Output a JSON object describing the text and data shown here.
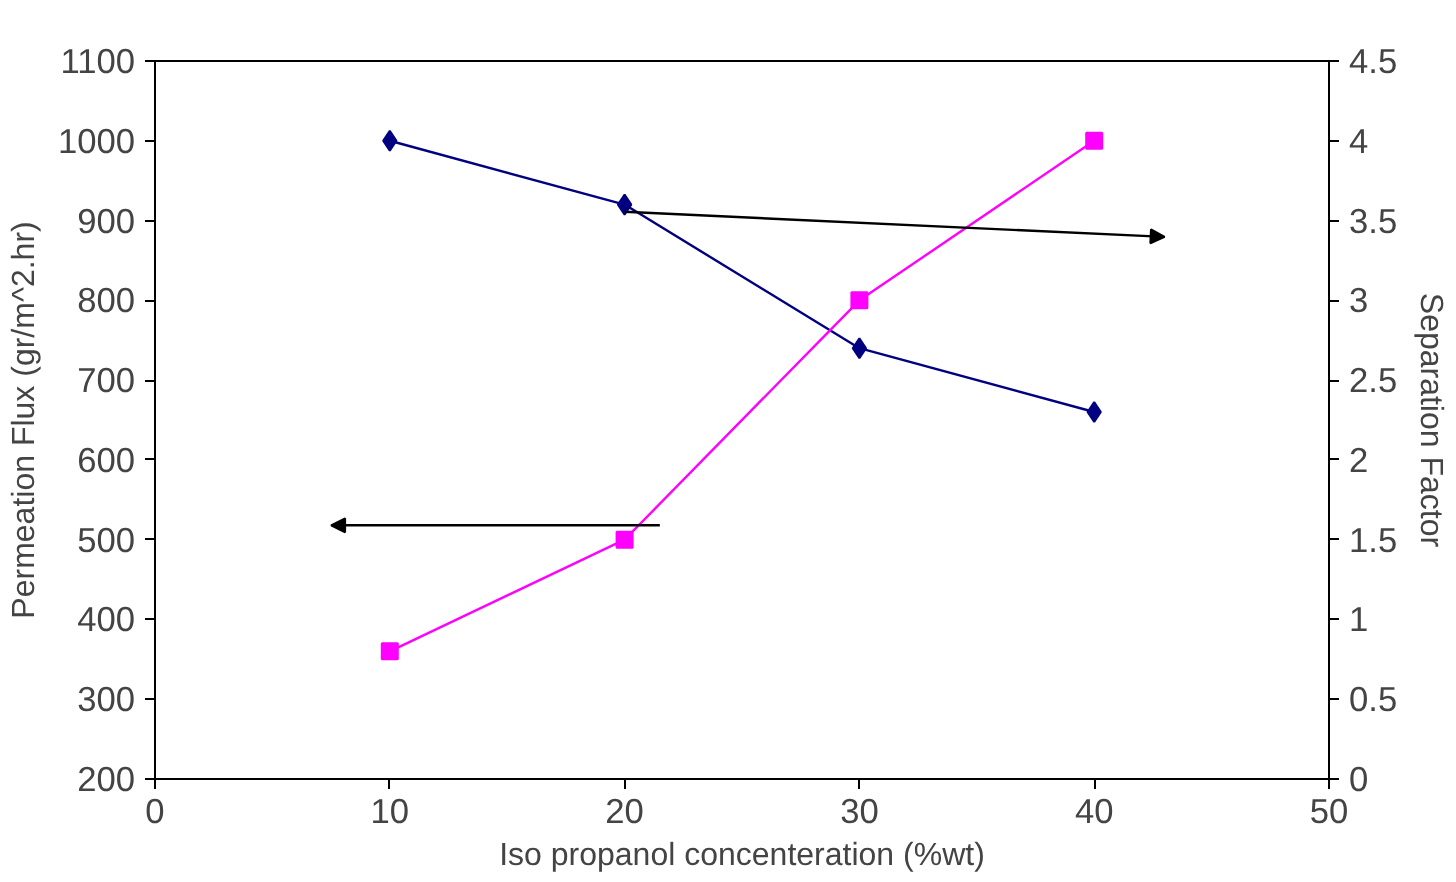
{
  "chart_data": {
    "type": "line",
    "xlabel": "Iso propanol concenteration (%wt)",
    "ylabel": "Permeation Flux (gr/m^2.hr)",
    "y2label": "Separation Factor",
    "x": [
      10,
      20,
      30,
      40
    ],
    "series": [
      {
        "color": "#000080",
        "marker": "diamond",
        "values": [
          1000,
          920,
          740,
          660
        ]
      },
      {
        "color": "#ff00ff",
        "marker": "square",
        "axis": "y2",
        "values": [
          0.8,
          1.5,
          3.0,
          4.0
        ]
      }
    ],
    "xlim": [
      0,
      50
    ],
    "xticks": [
      0,
      10,
      20,
      30,
      40,
      50
    ],
    "ylim": [
      200,
      1100
    ],
    "yticks": [
      200,
      300,
      400,
      500,
      600,
      700,
      800,
      900,
      1000,
      1100
    ],
    "y2lim": [
      0,
      4.5
    ],
    "y2ticks": [
      0,
      0.5,
      1,
      1.5,
      2,
      2.5,
      3,
      3.5,
      4,
      4.5
    ]
  }
}
